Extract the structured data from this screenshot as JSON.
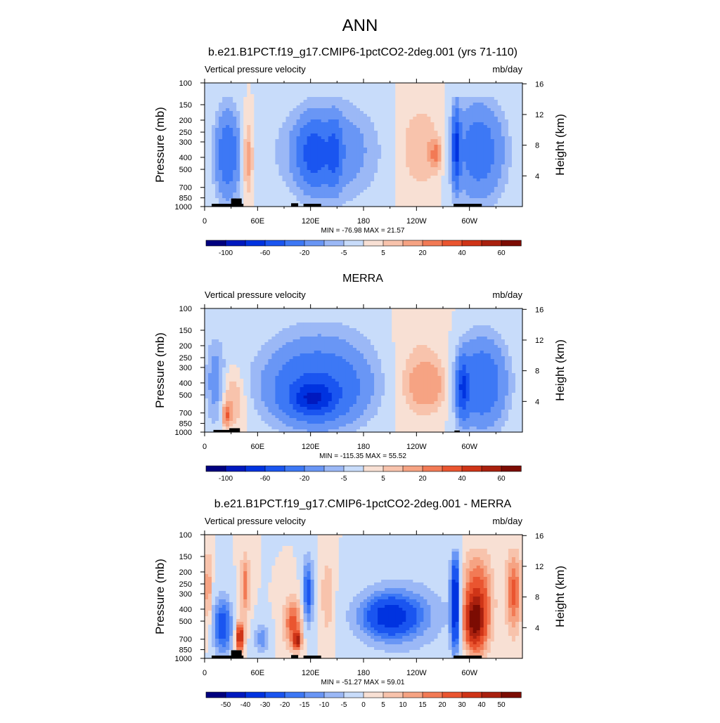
{
  "main_title": "ANN",
  "panels": [
    {
      "title": "b.e21.B1PCT.f19_g17.CMIP6-1pctCO2-2deg.001 (yrs 71-110)",
      "left_label": "Vertical pressure velocity",
      "right_label": "mb/day",
      "stats": "MIN = -76.98  MAX =  21.57",
      "colorbar_labels": [
        "-100",
        "-60",
        "-20",
        "-5",
        "5",
        "20",
        "40",
        "60"
      ]
    },
    {
      "title": "MERRA",
      "left_label": "Vertical pressure velocity",
      "right_label": "mb/day",
      "stats": "MIN = -115.35  MAX =  55.52",
      "colorbar_labels": [
        "-100",
        "-60",
        "-20",
        "-5",
        "5",
        "20",
        "40",
        "60"
      ]
    },
    {
      "title": "b.e21.B1PCT.f19_g17.CMIP6-1pctCO2-2deg.001 - MERRA",
      "left_label": "Vertical pressure velocity",
      "right_label": "mb/day",
      "stats": "MIN = -51.27  MAX =  59.01",
      "colorbar_labels": [
        "-50",
        "-40",
        "-30",
        "-20",
        "-15",
        "-10",
        "-5",
        "0",
        "5",
        "10",
        "15",
        "20",
        "30",
        "40",
        "50"
      ]
    }
  ],
  "chart_data": [
    {
      "type": "heatmap",
      "title": "b.e21.B1PCT.f19_g17.CMIP6-1pctCO2-2deg.001 (yrs 71-110)",
      "subtitle_left": "Vertical pressure velocity",
      "units": "mb/day",
      "xlabel": "",
      "ylabel": "Pressure (mb)",
      "ylabel_right": "Height (km)",
      "x_ticks": [
        "0",
        "60E",
        "120E",
        "180",
        "120W",
        "60W"
      ],
      "x_range": [
        0,
        360
      ],
      "y_ticks": [
        "100",
        "150",
        "200",
        "250",
        "300",
        "400",
        "500",
        "700",
        "850",
        "1000"
      ],
      "y_range": [
        100,
        1000
      ],
      "y_scale": "log",
      "y_right_ticks": [
        "4",
        "8",
        "12",
        "16"
      ],
      "levels": [
        -120,
        -100,
        -80,
        -60,
        -40,
        -20,
        -10,
        -5,
        0,
        5,
        10,
        20,
        30,
        40,
        50,
        60
      ],
      "min": -76.98,
      "max": 21.57,
      "colors": [
        "#00007f",
        "#0019bf",
        "#0033e0",
        "#1a55f0",
        "#3d78f5",
        "#6996f5",
        "#9bb8f6",
        "#c8dcfa",
        "#f8e0d4",
        "#f8c3ac",
        "#f6a383",
        "#f27a55",
        "#ea5530",
        "#cf3417",
        "#a9200e",
        "#7c0c03"
      ],
      "colorbar_labels": [
        "-100",
        "-60",
        "-20",
        "-5",
        "5",
        "20",
        "40",
        "60"
      ],
      "features": [
        {
          "x": [
            10,
            42
          ],
          "p": [
            150,
            950
          ],
          "value": -33
        },
        {
          "x": [
            42,
            56
          ],
          "p": [
            180,
            900
          ],
          "value": 15
        },
        {
          "x": [
            56,
            63
          ],
          "p": [
            100,
            1000
          ],
          "value": -4
        },
        {
          "x": [
            80,
            200
          ],
          "p": [
            130,
            980
          ],
          "value": -20
        },
        {
          "x": [
            105,
            142
          ],
          "p": [
            200,
            700
          ],
          "value": -40
        },
        {
          "x": [
            138,
            155
          ],
          "p": [
            200,
            700
          ],
          "value": -35
        },
        {
          "x": [
            215,
            275
          ],
          "p": [
            130,
            850
          ],
          "value": 10
        },
        {
          "x": [
            255,
            268
          ],
          "p": [
            280,
            500
          ],
          "value": 22
        },
        {
          "x": [
            278,
            343
          ],
          "p": [
            130,
            980
          ],
          "value": -30
        },
        {
          "x": [
            280,
            290
          ],
          "p": [
            160,
            700
          ],
          "value": -62
        }
      ],
      "land_surface": [
        {
          "x": [
            8,
            44
          ],
          "p": 950
        },
        {
          "x": [
            30,
            42
          ],
          "p": 860
        },
        {
          "x": [
            98,
            106
          ],
          "p": 940
        },
        {
          "x": [
            112,
            132
          ],
          "p": 950
        },
        {
          "x": [
            282,
            314
          ],
          "p": 950
        }
      ]
    },
    {
      "type": "heatmap",
      "title": "MERRA",
      "subtitle_left": "Vertical pressure velocity",
      "units": "mb/day",
      "xlabel": "",
      "ylabel": "Pressure (mb)",
      "ylabel_right": "Height (km)",
      "x_ticks": [
        "0",
        "60E",
        "120E",
        "180",
        "120W",
        "60W"
      ],
      "x_range": [
        0,
        360
      ],
      "y_ticks": [
        "100",
        "150",
        "200",
        "250",
        "300",
        "400",
        "500",
        "700",
        "850",
        "1000"
      ],
      "y_range": [
        100,
        1000
      ],
      "y_scale": "log",
      "y_right_ticks": [
        "4",
        "8",
        "12",
        "16"
      ],
      "levels": [
        -120,
        -100,
        -80,
        -60,
        -40,
        -20,
        -10,
        -5,
        0,
        5,
        10,
        20,
        30,
        40,
        50,
        60
      ],
      "min": -115.35,
      "max": 55.52,
      "colors": [
        "#00007f",
        "#0019bf",
        "#0033e0",
        "#1a55f0",
        "#3d78f5",
        "#6996f5",
        "#9bb8f6",
        "#c8dcfa",
        "#f8e0d4",
        "#f8c3ac",
        "#f6a383",
        "#f27a55",
        "#ea5530",
        "#cf3417",
        "#a9200e",
        "#7c0c03"
      ],
      "colorbar_labels": [
        "-100",
        "-60",
        "-20",
        "-5",
        "5",
        "20",
        "40",
        "60"
      ],
      "features": [
        {
          "x": [
            0,
            25
          ],
          "p": [
            160,
            1000
          ],
          "value": -15
        },
        {
          "x": [
            15,
            48
          ],
          "p": [
            300,
            1000
          ],
          "value": 12
        },
        {
          "x": [
            20,
            30
          ],
          "p": [
            600,
            900
          ],
          "value": 28
        },
        {
          "x": [
            55,
            205
          ],
          "p": [
            120,
            1000
          ],
          "value": -18
        },
        {
          "x": [
            72,
            180
          ],
          "p": [
            240,
            900
          ],
          "value": -32
        },
        {
          "x": [
            95,
            150
          ],
          "p": [
            400,
            750
          ],
          "value": -45
        },
        {
          "x": [
            205,
            282
          ],
          "p": [
            100,
            1000
          ],
          "value": 6
        },
        {
          "x": [
            225,
            278
          ],
          "p": [
            250,
            700
          ],
          "value": 14
        },
        {
          "x": [
            283,
            345
          ],
          "p": [
            160,
            1000
          ],
          "value": -35
        },
        {
          "x": [
            285,
            300
          ],
          "p": [
            250,
            800
          ],
          "value": -55
        }
      ],
      "land_surface": [
        {
          "x": [
            10,
            38
          ],
          "p": 960
        },
        {
          "x": [
            28,
            40
          ],
          "p": 930
        },
        {
          "x": [
            283,
            289
          ],
          "p": 970
        }
      ]
    },
    {
      "type": "heatmap",
      "title": "b.e21.B1PCT.f19_g17.CMIP6-1pctCO2-2deg.001 - MERRA",
      "subtitle_left": "Vertical pressure velocity",
      "units": "mb/day",
      "xlabel": "",
      "ylabel": "Pressure (mb)",
      "ylabel_right": "Height (km)",
      "x_ticks": [
        "0",
        "60E",
        "120E",
        "180",
        "120W",
        "60W"
      ],
      "x_range": [
        0,
        360
      ],
      "y_ticks": [
        "100",
        "150",
        "200",
        "250",
        "300",
        "400",
        "500",
        "700",
        "850",
        "1000"
      ],
      "y_range": [
        100,
        1000
      ],
      "y_scale": "log",
      "y_right_ticks": [
        "4",
        "8",
        "12",
        "16"
      ],
      "levels": [
        -60,
        -50,
        -40,
        -30,
        -20,
        -15,
        -10,
        -5,
        0,
        5,
        10,
        15,
        20,
        30,
        40,
        50
      ],
      "min": -51.27,
      "max": 59.01,
      "colors": [
        "#00007f",
        "#0019bf",
        "#0033e0",
        "#1a55f0",
        "#3d78f5",
        "#6996f5",
        "#9bb8f6",
        "#c8dcfa",
        "#f8e0d4",
        "#f8c3ac",
        "#f6a383",
        "#f27a55",
        "#ea5530",
        "#cf3417",
        "#a9200e",
        "#7c0c03"
      ],
      "colorbar_labels": [
        "-50",
        "-40",
        "-30",
        "-20",
        "-15",
        "-10",
        "-5",
        "0",
        "5",
        "10",
        "15",
        "20",
        "30",
        "40",
        "50"
      ],
      "features": [
        {
          "x": [
            0,
            8
          ],
          "p": [
            120,
            600
          ],
          "value": 16
        },
        {
          "x": [
            8,
            33
          ],
          "p": [
            300,
            1000
          ],
          "value": -26
        },
        {
          "x": [
            35,
            45
          ],
          "p": [
            500,
            900
          ],
          "value": 45
        },
        {
          "x": [
            40,
            52
          ],
          "p": [
            130,
            500
          ],
          "value": 18
        },
        {
          "x": [
            55,
            75
          ],
          "p": [
            500,
            950
          ],
          "value": -14
        },
        {
          "x": [
            88,
            112
          ],
          "p": [
            300,
            900
          ],
          "value": 22
        },
        {
          "x": [
            100,
            110
          ],
          "p": [
            600,
            850
          ],
          "value": 40
        },
        {
          "x": [
            110,
            124
          ],
          "p": [
            140,
            600
          ],
          "value": -24
        },
        {
          "x": [
            130,
            148
          ],
          "p": [
            130,
            800
          ],
          "value": 10
        },
        {
          "x": [
            160,
            285
          ],
          "p": [
            200,
            1000
          ],
          "value": -12
        },
        {
          "x": [
            175,
            245
          ],
          "p": [
            300,
            700
          ],
          "value": -28
        },
        {
          "x": [
            278,
            290
          ],
          "p": [
            130,
            950
          ],
          "value": -45
        },
        {
          "x": [
            290,
            328
          ],
          "p": [
            130,
            980
          ],
          "value": 28
        },
        {
          "x": [
            294,
            318
          ],
          "p": [
            300,
            850
          ],
          "value": 42
        },
        {
          "x": [
            340,
            360
          ],
          "p": [
            120,
            700
          ],
          "value": 22
        }
      ],
      "land_surface": [
        {
          "x": [
            8,
            44
          ],
          "p": 950
        },
        {
          "x": [
            30,
            42
          ],
          "p": 860
        },
        {
          "x": [
            98,
            106
          ],
          "p": 940
        },
        {
          "x": [
            112,
            132
          ],
          "p": 950
        },
        {
          "x": [
            282,
            314
          ],
          "p": 950
        }
      ]
    }
  ]
}
